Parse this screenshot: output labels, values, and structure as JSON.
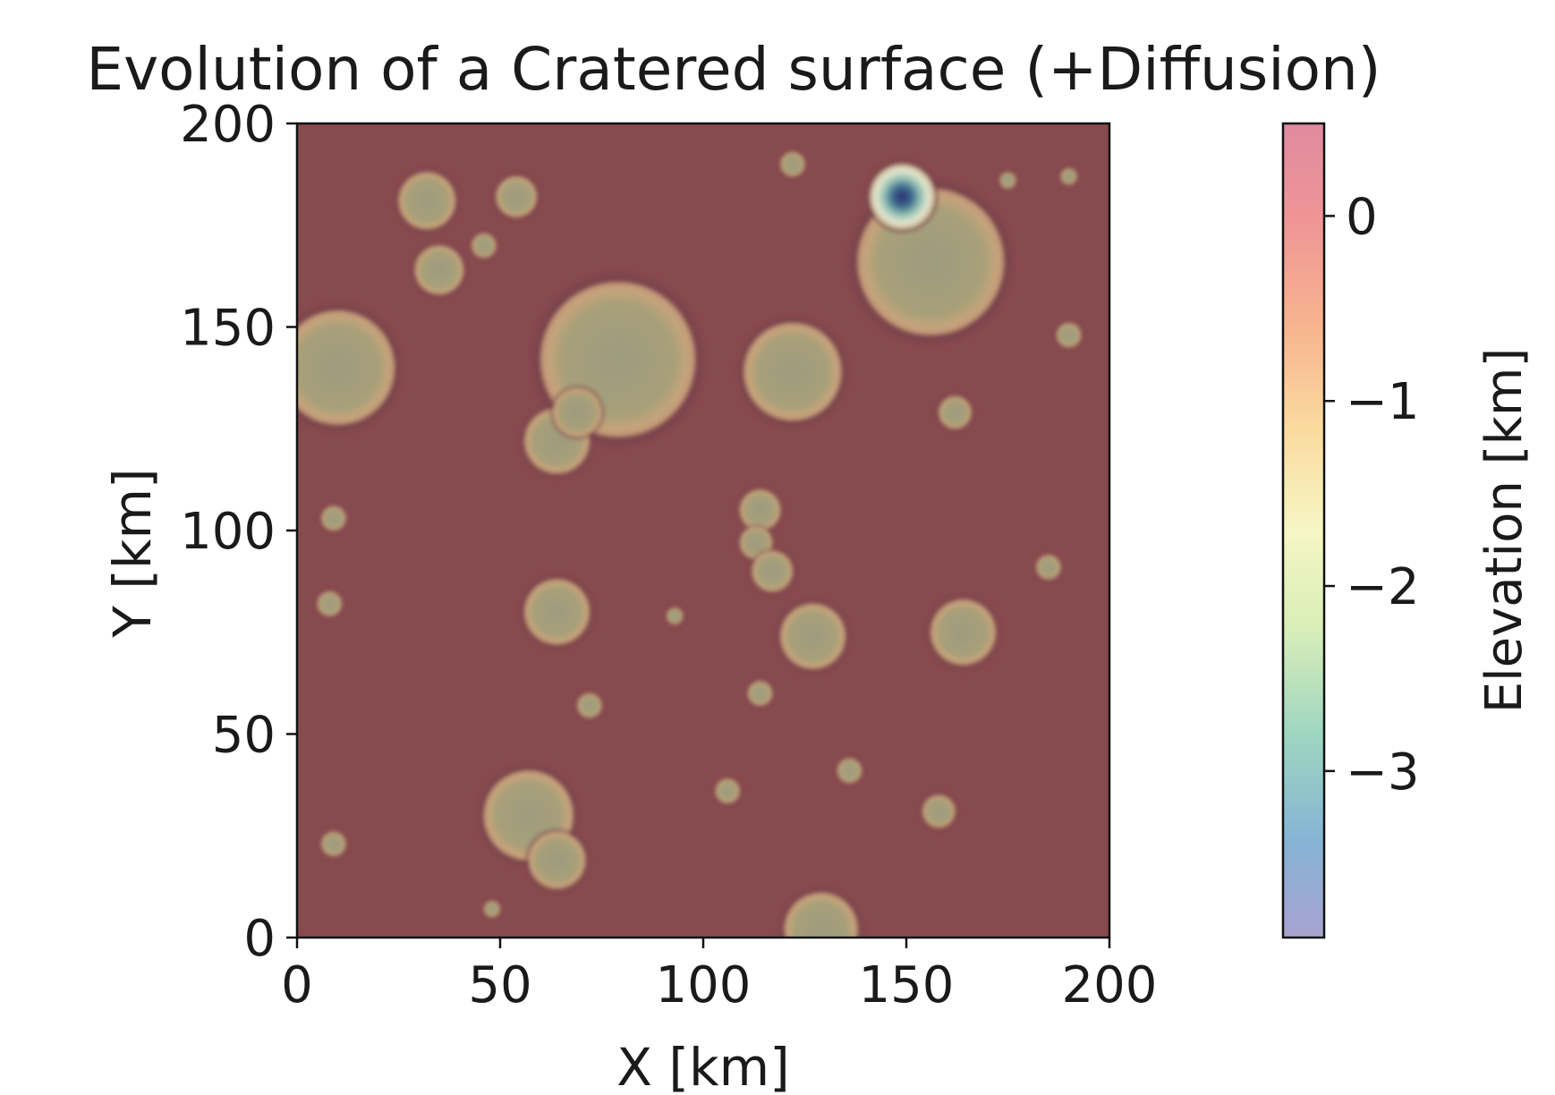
{
  "chart_data": {
    "type": "heatmap",
    "title": "Evolution of a Cratered surface (+Diffusion)",
    "xlabel": "X [km]",
    "ylabel": "Y [km]",
    "xlim": [
      0,
      200
    ],
    "ylim": [
      0,
      200
    ],
    "xticks": [
      "0",
      "50",
      "100",
      "150",
      "200"
    ],
    "yticks": [
      "0",
      "50",
      "100",
      "150",
      "200"
    ],
    "colorbar": {
      "label": "Elevation [km]",
      "range": [
        -3.9,
        0.5
      ],
      "ticks": [
        {
          "value": 0,
          "label": "0"
        },
        {
          "value": -1,
          "label": "−1"
        },
        {
          "value": -2,
          "label": "−2"
        },
        {
          "value": -3,
          "label": "−3"
        }
      ],
      "colormap": "Spectral_r (translucent)"
    },
    "background_color": "#874a4e",
    "craters": [
      {
        "x": 10,
        "y": 140,
        "r": 14
      },
      {
        "x": 79,
        "y": 142,
        "r": 19
      },
      {
        "x": 122,
        "y": 139,
        "r": 12
      },
      {
        "x": 156,
        "y": 166,
        "r": 18
      },
      {
        "x": 149,
        "y": 182,
        "r": 8,
        "depth": "deep"
      },
      {
        "x": 32,
        "y": 181,
        "r": 7
      },
      {
        "x": 35,
        "y": 164,
        "r": 6
      },
      {
        "x": 54,
        "y": 182,
        "r": 5
      },
      {
        "x": 46,
        "y": 170,
        "r": 3
      },
      {
        "x": 64,
        "y": 122,
        "r": 8
      },
      {
        "x": 69,
        "y": 129,
        "r": 6
      },
      {
        "x": 64,
        "y": 80,
        "r": 8
      },
      {
        "x": 127,
        "y": 74,
        "r": 8
      },
      {
        "x": 164,
        "y": 75,
        "r": 8
      },
      {
        "x": 57,
        "y": 30,
        "r": 11
      },
      {
        "x": 64,
        "y": 19,
        "r": 7
      },
      {
        "x": 129,
        "y": 2,
        "r": 9
      },
      {
        "x": 114,
        "y": 105,
        "r": 5
      },
      {
        "x": 113,
        "y": 97,
        "r": 4
      },
      {
        "x": 117,
        "y": 90,
        "r": 5
      },
      {
        "x": 158,
        "y": 31,
        "r": 4
      },
      {
        "x": 162,
        "y": 129,
        "r": 4
      },
      {
        "x": 190,
        "y": 148,
        "r": 3
      },
      {
        "x": 136,
        "y": 41,
        "r": 3
      },
      {
        "x": 9,
        "y": 103,
        "r": 3
      },
      {
        "x": 8,
        "y": 82,
        "r": 3
      },
      {
        "x": 9,
        "y": 23,
        "r": 3
      },
      {
        "x": 72,
        "y": 57,
        "r": 3
      },
      {
        "x": 114,
        "y": 60,
        "r": 3
      },
      {
        "x": 185,
        "y": 91,
        "r": 3
      },
      {
        "x": 122,
        "y": 190,
        "r": 3
      },
      {
        "x": 106,
        "y": 36,
        "r": 3
      },
      {
        "x": 93,
        "y": 79,
        "r": 2
      },
      {
        "x": 48,
        "y": 7,
        "r": 2
      },
      {
        "x": 190,
        "y": 187,
        "r": 2
      },
      {
        "x": 175,
        "y": 186,
        "r": 2
      }
    ]
  }
}
